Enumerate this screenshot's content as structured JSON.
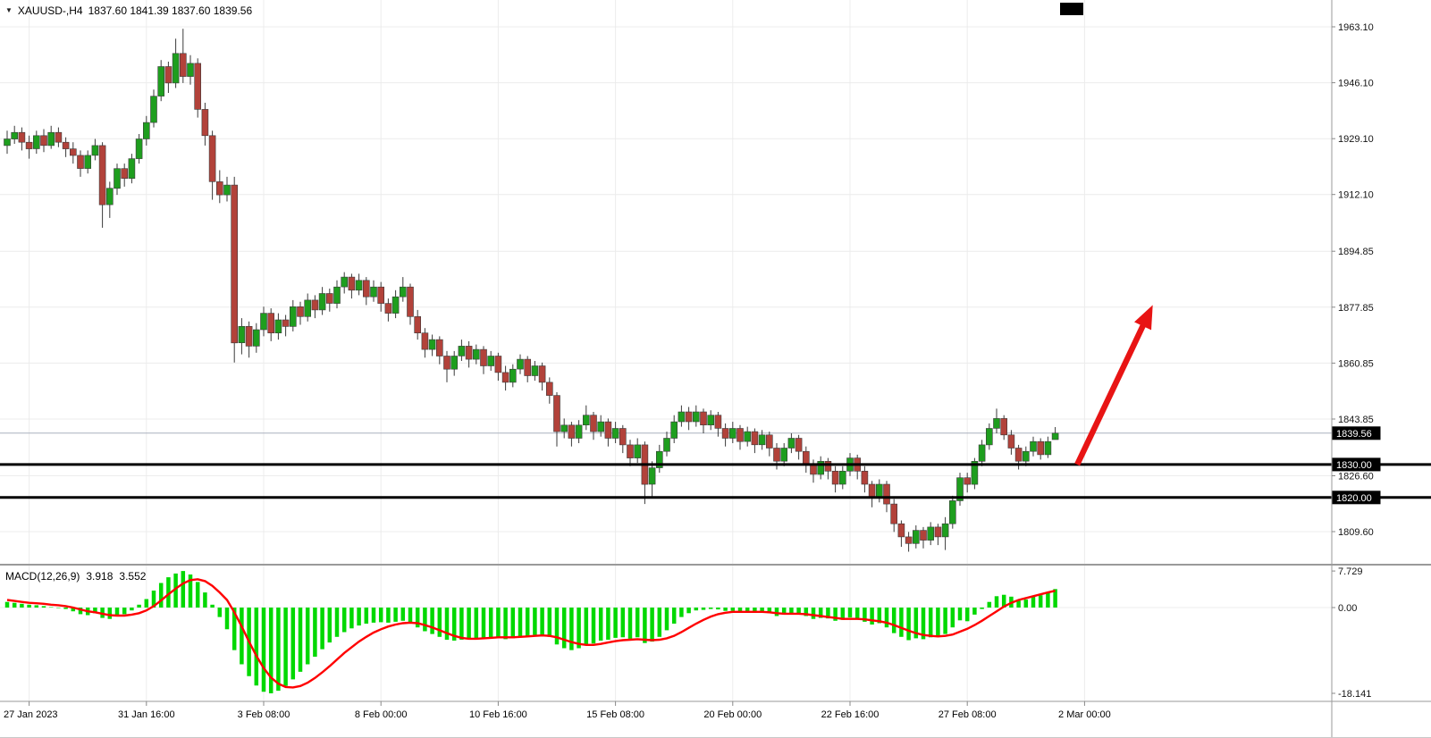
{
  "header": {
    "dropdown_icon": "▼",
    "symbol_period": "XAUUSD-,H4",
    "ohlc": "1837.60 1841.39 1837.60 1839.56"
  },
  "colors": {
    "bull": "#1e9e1e",
    "bear": "#b2423a",
    "wick": "#3a3a3a",
    "grid": "#ececec",
    "hist": "#00d800",
    "signal": "#ff0000",
    "arrow": "#e81414",
    "level_line": "#000000",
    "axis_text": "#141414",
    "marker_bg": "#000000",
    "marker_text": "#ffffff",
    "separator": "#9a9a9a",
    "current_price_line": "#aab0be"
  },
  "chart_data": {
    "type": "candlestick",
    "symbol": "XAUUSD-",
    "timeframe": "H4",
    "title": "XAUUSD-,H4 1837.60 1841.39 1837.60 1839.56",
    "last_price": 1839.56,
    "current_price_label": "1839.56",
    "price_ticks": [
      {
        "v": 1963.1,
        "label": "1963.10"
      },
      {
        "v": 1946.1,
        "label": "1946.10"
      },
      {
        "v": 1929.1,
        "label": "1929.10"
      },
      {
        "v": 1912.1,
        "label": "1912.10"
      },
      {
        "v": 1894.85,
        "label": "1894.85"
      },
      {
        "v": 1877.85,
        "label": "1877.85"
      },
      {
        "v": 1860.85,
        "label": "1860.85"
      },
      {
        "v": 1843.85,
        "label": "1843.85"
      },
      {
        "v": 1826.6,
        "label": "1826.60"
      },
      {
        "v": 1809.6,
        "label": "1809.60"
      }
    ],
    "time_labels": [
      {
        "text": "27 Jan 2023",
        "i": 3
      },
      {
        "text": "31 Jan 16:00",
        "i": 19
      },
      {
        "text": "3 Feb 08:00",
        "i": 35
      },
      {
        "text": "8 Feb 00:00",
        "i": 51
      },
      {
        "text": "10 Feb 16:00",
        "i": 67
      },
      {
        "text": "15 Feb 08:00",
        "i": 83
      },
      {
        "text": "20 Feb 00:00",
        "i": 99
      },
      {
        "text": "22 Feb 16:00",
        "i": 115
      },
      {
        "text": "27 Feb 08:00",
        "i": 131
      },
      {
        "text": "2 Mar 00:00",
        "i": 147
      }
    ],
    "hlines": [
      {
        "price": 1830.0,
        "label": "1830.00"
      },
      {
        "price": 1820.0,
        "label": "1820.00"
      }
    ],
    "arrow": {
      "from": {
        "i": 146,
        "price": 1830.0
      },
      "to": {
        "i": 156.3,
        "price": 1878.5
      }
    },
    "candles": [
      [
        1927,
        1931.5,
        1924.5,
        1929
      ],
      [
        1929,
        1933,
        1927.5,
        1931
      ],
      [
        1931,
        1932.5,
        1925.5,
        1928
      ],
      [
        1928,
        1930,
        1923,
        1926
      ],
      [
        1926,
        1931.5,
        1924.5,
        1930
      ],
      [
        1930,
        1932,
        1925,
        1927
      ],
      [
        1927,
        1933,
        1926,
        1931
      ],
      [
        1931,
        1932.5,
        1926.5,
        1928
      ],
      [
        1928,
        1929.5,
        1923.5,
        1926
      ],
      [
        1926,
        1928,
        1921.5,
        1924
      ],
      [
        1924,
        1925.5,
        1917.5,
        1920
      ],
      [
        1920,
        1925.5,
        1918.5,
        1924
      ],
      [
        1924,
        1929,
        1922.5,
        1927
      ],
      [
        1927,
        1928,
        1902,
        1909
      ],
      [
        1909,
        1916,
        1905,
        1914
      ],
      [
        1914,
        1921.5,
        1912,
        1920
      ],
      [
        1920,
        1921.5,
        1914.5,
        1917
      ],
      [
        1917,
        1924.5,
        1915.5,
        1923
      ],
      [
        1923,
        1930.5,
        1921.5,
        1929
      ],
      [
        1929,
        1936,
        1927,
        1934
      ],
      [
        1934,
        1944,
        1932.5,
        1942
      ],
      [
        1942,
        1953,
        1940.5,
        1951
      ],
      [
        1951,
        1952.5,
        1943,
        1946
      ],
      [
        1946,
        1959.5,
        1944.5,
        1955
      ],
      [
        1955,
        1962.5,
        1946,
        1948
      ],
      [
        1948,
        1954.5,
        1945.5,
        1952
      ],
      [
        1952,
        1953.5,
        1935.5,
        1938
      ],
      [
        1938,
        1940,
        1927,
        1930
      ],
      [
        1930,
        1931.5,
        1910.5,
        1916
      ],
      [
        1916,
        1919.5,
        1909.5,
        1912
      ],
      [
        1912,
        1917.5,
        1910,
        1915
      ],
      [
        1915,
        1917.5,
        1861,
        1867
      ],
      [
        1867,
        1874.5,
        1863.5,
        1872
      ],
      [
        1872,
        1873.5,
        1862.5,
        1866
      ],
      [
        1866,
        1873,
        1864,
        1871
      ],
      [
        1871,
        1878,
        1869,
        1876
      ],
      [
        1876,
        1877.5,
        1867.5,
        1870
      ],
      [
        1870,
        1876,
        1868,
        1874
      ],
      [
        1874,
        1875.5,
        1869,
        1872
      ],
      [
        1872,
        1880,
        1870.5,
        1878
      ],
      [
        1878,
        1879.5,
        1872.5,
        1875
      ],
      [
        1875,
        1882,
        1873.5,
        1880
      ],
      [
        1880,
        1881.5,
        1874.5,
        1877
      ],
      [
        1877,
        1884,
        1875.5,
        1882
      ],
      [
        1882,
        1883.5,
        1876.5,
        1879
      ],
      [
        1879,
        1886,
        1877.5,
        1884
      ],
      [
        1884,
        1888.5,
        1882,
        1887
      ],
      [
        1887,
        1888,
        1880.5,
        1883
      ],
      [
        1883,
        1888,
        1881.5,
        1886
      ],
      [
        1886,
        1887,
        1878.5,
        1881
      ],
      [
        1881,
        1886,
        1879.5,
        1884
      ],
      [
        1884,
        1885.5,
        1876.5,
        1879
      ],
      [
        1879,
        1880.5,
        1873.5,
        1876
      ],
      [
        1876,
        1883,
        1874.5,
        1881
      ],
      [
        1881,
        1887,
        1879.5,
        1884
      ],
      [
        1884,
        1885,
        1872.5,
        1875
      ],
      [
        1875,
        1877,
        1868,
        1870
      ],
      [
        1870,
        1871.5,
        1862.5,
        1865
      ],
      [
        1865,
        1869.5,
        1863,
        1868
      ],
      [
        1868,
        1869,
        1860.5,
        1863
      ],
      [
        1863,
        1864.5,
        1855,
        1859
      ],
      [
        1859,
        1864.5,
        1857,
        1863
      ],
      [
        1863,
        1868,
        1861.5,
        1866
      ],
      [
        1866,
        1867.5,
        1859.5,
        1862
      ],
      [
        1862,
        1866.5,
        1860.5,
        1865
      ],
      [
        1865,
        1866,
        1857.5,
        1860
      ],
      [
        1860,
        1864.5,
        1858.5,
        1863
      ],
      [
        1863,
        1864,
        1855.5,
        1858
      ],
      [
        1858,
        1860,
        1852.5,
        1855
      ],
      [
        1855,
        1860.5,
        1853.5,
        1859
      ],
      [
        1859,
        1863.5,
        1857.5,
        1862
      ],
      [
        1862,
        1863,
        1855,
        1857
      ],
      [
        1857,
        1861.5,
        1855.5,
        1860
      ],
      [
        1860,
        1861,
        1852.5,
        1855
      ],
      [
        1855,
        1856.5,
        1848.5,
        1851
      ],
      [
        1851,
        1852,
        1835.5,
        1840
      ],
      [
        1840,
        1844,
        1838,
        1842
      ],
      [
        1842,
        1843,
        1835.5,
        1838
      ],
      [
        1838,
        1843.5,
        1836.5,
        1842
      ],
      [
        1842,
        1848,
        1840.5,
        1845
      ],
      [
        1845,
        1846,
        1837.5,
        1840
      ],
      [
        1840,
        1845,
        1838.5,
        1843
      ],
      [
        1843,
        1844,
        1835.5,
        1838
      ],
      [
        1838,
        1843,
        1836.5,
        1841
      ],
      [
        1841,
        1842,
        1833.5,
        1836
      ],
      [
        1836,
        1837.5,
        1829.5,
        1832
      ],
      [
        1832,
        1838,
        1830.5,
        1836
      ],
      [
        1836,
        1837,
        1818,
        1824
      ],
      [
        1824,
        1831,
        1820,
        1829
      ],
      [
        1829,
        1836,
        1827.5,
        1834
      ],
      [
        1834,
        1840,
        1832.5,
        1838
      ],
      [
        1838,
        1845,
        1836.5,
        1843
      ],
      [
        1843,
        1848,
        1841.5,
        1846
      ],
      [
        1846,
        1847.5,
        1840.5,
        1843
      ],
      [
        1843,
        1848,
        1841.5,
        1846
      ],
      [
        1846,
        1847,
        1839.5,
        1842
      ],
      [
        1842,
        1846.5,
        1840.5,
        1845
      ],
      [
        1845,
        1846,
        1838.5,
        1841
      ],
      [
        1841,
        1842.5,
        1835.5,
        1838
      ],
      [
        1838,
        1843,
        1836.5,
        1841
      ],
      [
        1841,
        1842,
        1834.5,
        1837
      ],
      [
        1837,
        1841.5,
        1835.5,
        1840
      ],
      [
        1840,
        1841,
        1833.5,
        1836
      ],
      [
        1836,
        1840.5,
        1834.5,
        1839
      ],
      [
        1839,
        1840,
        1832.5,
        1835
      ],
      [
        1835,
        1836.5,
        1828.5,
        1831
      ],
      [
        1831,
        1836.5,
        1829.5,
        1835
      ],
      [
        1835,
        1839.5,
        1833.5,
        1838
      ],
      [
        1838,
        1839,
        1831.5,
        1834
      ],
      [
        1834,
        1835.5,
        1827.5,
        1830
      ],
      [
        1830,
        1831.5,
        1824.5,
        1827
      ],
      [
        1827,
        1832.5,
        1825.5,
        1831
      ],
      [
        1831,
        1832,
        1825.5,
        1828
      ],
      [
        1828,
        1829.5,
        1821.5,
        1824
      ],
      [
        1824,
        1829.5,
        1822.5,
        1828
      ],
      [
        1828,
        1833.5,
        1826.5,
        1832
      ],
      [
        1832,
        1833,
        1825.5,
        1828
      ],
      [
        1828,
        1829.5,
        1821.5,
        1824
      ],
      [
        1824,
        1825,
        1817,
        1820
      ],
      [
        1820,
        1825.5,
        1818.5,
        1824
      ],
      [
        1824,
        1825,
        1815.5,
        1818
      ],
      [
        1818,
        1819.5,
        1809.5,
        1812
      ],
      [
        1812,
        1813,
        1805,
        1808
      ],
      [
        1808,
        1809.5,
        1803.5,
        1806
      ],
      [
        1806,
        1811.5,
        1804.5,
        1810
      ],
      [
        1810,
        1811,
        1804.5,
        1807
      ],
      [
        1807,
        1812.5,
        1805.5,
        1811
      ],
      [
        1811,
        1812,
        1805.5,
        1808
      ],
      [
        1808,
        1814,
        1804,
        1812
      ],
      [
        1812,
        1820.5,
        1810.5,
        1819
      ],
      [
        1819,
        1827.5,
        1817.5,
        1826
      ],
      [
        1826,
        1827.5,
        1821.5,
        1824
      ],
      [
        1824,
        1832,
        1822.5,
        1831
      ],
      [
        1831,
        1837.5,
        1829.5,
        1836
      ],
      [
        1836,
        1842.5,
        1834.5,
        1841
      ],
      [
        1841,
        1847,
        1839.5,
        1844
      ],
      [
        1844,
        1845,
        1837.5,
        1839
      ],
      [
        1839,
        1840.5,
        1833,
        1835
      ],
      [
        1835,
        1836,
        1828.5,
        1831
      ],
      [
        1831,
        1835.5,
        1829.5,
        1834
      ],
      [
        1834,
        1838.5,
        1832.5,
        1837
      ],
      [
        1837,
        1838,
        1831.5,
        1833
      ],
      [
        1833,
        1838.5,
        1832,
        1837
      ],
      [
        1837.6,
        1841.39,
        1837.6,
        1839.56
      ]
    ],
    "macd": {
      "label": "MACD(12,26,9)",
      "value_main": "3.918",
      "value_signal": "3.552",
      "ticks": [
        {
          "v": 7.729,
          "label": "7.729"
        },
        {
          "v": 0,
          "label": "0.00"
        },
        {
          "v": -18.141,
          "label": "-18.141"
        }
      ],
      "histogram": [
        1.2,
        1.0,
        0.8,
        0.6,
        0.5,
        0.3,
        0.1,
        -0.1,
        -0.3,
        -0.8,
        -1.4,
        -1.6,
        -1.2,
        -2.2,
        -2.4,
        -1.8,
        -1.4,
        -0.6,
        0.6,
        1.8,
        3.6,
        5.2,
        6.4,
        7.2,
        7.729,
        7.0,
        5.4,
        3.2,
        0.6,
        -2.0,
        -4.6,
        -9.0,
        -12.0,
        -14.5,
        -16.5,
        -17.8,
        -18.141,
        -17.6,
        -16.6,
        -15.2,
        -13.6,
        -12.0,
        -10.4,
        -8.8,
        -7.4,
        -6.2,
        -5.2,
        -4.4,
        -3.8,
        -3.4,
        -3.2,
        -3.1,
        -3.2,
        -3.0,
        -2.8,
        -3.4,
        -4.2,
        -5.0,
        -5.6,
        -6.2,
        -6.8,
        -7.0,
        -6.8,
        -6.7,
        -6.5,
        -6.6,
        -6.4,
        -6.5,
        -6.7,
        -6.5,
        -6.2,
        -6.0,
        -5.8,
        -5.9,
        -6.2,
        -7.8,
        -8.6,
        -9.0,
        -8.6,
        -8.0,
        -7.6,
        -7.0,
        -6.8,
        -6.4,
        -6.3,
        -6.6,
        -6.3,
        -7.5,
        -7.2,
        -6.2,
        -4.8,
        -3.4,
        -2.0,
        -1.2,
        -0.6,
        -0.5,
        -0.3,
        -0.4,
        -0.7,
        -0.7,
        -1.0,
        -0.8,
        -1.0,
        -0.9,
        -1.2,
        -1.8,
        -1.5,
        -1.2,
        -1.4,
        -1.8,
        -2.4,
        -2.2,
        -2.3,
        -2.8,
        -2.6,
        -2.1,
        -2.4,
        -3.0,
        -3.6,
        -3.3,
        -4.2,
        -5.4,
        -6.2,
        -6.9,
        -6.5,
        -6.7,
        -6.3,
        -6.2,
        -5.6,
        -4.2,
        -2.7,
        -2.9,
        -1.5,
        -0.3,
        1.2,
        2.4,
        2.7,
        2.3,
        1.5,
        1.7,
        2.3,
        2.6,
        3.3,
        3.918
      ],
      "signal": [
        1.6,
        1.4,
        1.2,
        1.0,
        0.9,
        0.8,
        0.6,
        0.5,
        0.3,
        0.0,
        -0.4,
        -0.8,
        -1.0,
        -1.3,
        -1.6,
        -1.7,
        -1.7,
        -1.5,
        -1.2,
        -0.6,
        0.3,
        1.5,
        2.8,
        4.0,
        5.1,
        5.8,
        6.0,
        5.6,
        4.6,
        3.2,
        1.6,
        -1.0,
        -4.0,
        -7.2,
        -10.2,
        -12.8,
        -14.8,
        -16.1,
        -16.8,
        -16.9,
        -16.6,
        -15.9,
        -14.9,
        -13.7,
        -12.4,
        -11.0,
        -9.6,
        -8.4,
        -7.2,
        -6.2,
        -5.3,
        -4.6,
        -4.0,
        -3.6,
        -3.3,
        -3.2,
        -3.3,
        -3.7,
        -4.2,
        -4.8,
        -5.4,
        -6.0,
        -6.4,
        -6.6,
        -6.6,
        -6.5,
        -6.4,
        -6.3,
        -6.3,
        -6.3,
        -6.2,
        -6.1,
        -6.0,
        -5.9,
        -6.0,
        -6.3,
        -6.8,
        -7.3,
        -7.7,
        -7.9,
        -7.9,
        -7.7,
        -7.4,
        -7.1,
        -6.9,
        -6.8,
        -6.7,
        -6.8,
        -6.9,
        -6.8,
        -6.5,
        -6.0,
        -5.2,
        -4.3,
        -3.4,
        -2.6,
        -1.9,
        -1.4,
        -1.1,
        -0.9,
        -0.9,
        -0.9,
        -0.9,
        -0.9,
        -1.0,
        -1.2,
        -1.3,
        -1.3,
        -1.3,
        -1.4,
        -1.6,
        -1.8,
        -2.0,
        -2.2,
        -2.4,
        -2.4,
        -2.4,
        -2.5,
        -2.7,
        -2.9,
        -3.2,
        -3.7,
        -4.3,
        -4.9,
        -5.4,
        -5.8,
        -6.0,
        -6.1,
        -6.0,
        -5.7,
        -5.1,
        -4.5,
        -3.7,
        -2.8,
        -1.8,
        -0.8,
        0.2,
        1.0,
        1.6,
        2.0,
        2.4,
        2.8,
        3.2,
        3.552
      ]
    }
  }
}
